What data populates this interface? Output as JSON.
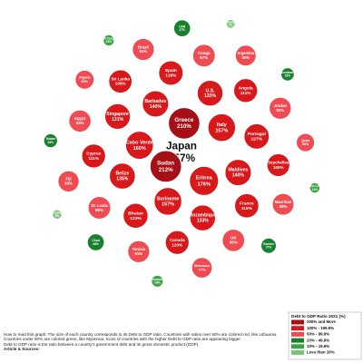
{
  "chart_data": {
    "type": "radial",
    "categories": [
      "Japan",
      "Sudan",
      "Greece",
      "Eritrea",
      "Cabo Verde",
      "Italy",
      "Suriname",
      "Barbados",
      "Maldives",
      "Belize",
      "U.S.",
      "Mozambique",
      "Singapore",
      "Portugal",
      "Bhutan",
      "Spain",
      "France",
      "Cyprus",
      "Angola",
      "Canada",
      "Sri Lanka",
      "Seychelles",
      "St. Lucia",
      "Congo",
      "UK",
      "Egypt",
      "Jordan",
      "Tunisia",
      "Brazil",
      "Mauritius",
      "Fiji",
      "Argentina",
      "Morocco",
      "Algeria",
      "Qatar",
      "Chad",
      "CAR",
      "Sweden",
      "Taiwan",
      "Luxembourg",
      "Micronesia",
      "DR Congo",
      "Timor-Leste",
      "Tuvalu",
      "Afghanistan"
    ],
    "values": [
      257,
      212,
      210,
      176,
      160,
      157,
      157,
      140,
      140,
      135,
      133,
      133,
      131,
      127,
      123,
      118,
      115,
      111,
      111,
      110,
      105,
      100,
      98,
      97,
      95,
      93,
      92,
      91,
      91,
      88,
      83,
      80,
      77,
      63,
      58,
      48,
      47,
      37,
      28,
      25,
      18,
      15,
      12,
      9,
      7
    ],
    "value_labels": [
      "257%",
      "212%",
      "210%",
      "176%",
      "160%",
      "157%",
      "157%",
      "140%",
      "140%",
      "135%",
      "133%",
      "133%",
      "131%",
      "127%",
      "123%",
      "118%",
      "115%",
      "111%",
      "111%",
      "110%",
      "105%",
      "100%",
      "98%",
      "97%",
      "95%",
      "93%",
      "92%",
      "91%",
      "91%",
      "88%",
      "83%",
      "80%",
      "77%",
      "63%",
      "58%",
      "48%",
      "47%",
      "37%",
      "28%",
      "25%",
      "18%",
      "15%",
      "12%",
      "9%",
      "7%"
    ],
    "colors": [
      "#a50f15",
      "#a50f15",
      "#a50f15",
      "#d7191c",
      "#d7191c",
      "#d7191c",
      "#d7191c",
      "#d7191c",
      "#d7191c",
      "#d7191c",
      "#d7191c",
      "#d7191c",
      "#d7191c",
      "#d7191c",
      "#d7191c",
      "#d7191c",
      "#d7191c",
      "#d7191c",
      "#d7191c",
      "#d7191c",
      "#d7191c",
      "#d7191c",
      "#ee4b52",
      "#ee4b52",
      "#ee4b52",
      "#ee4b52",
      "#ee4b52",
      "#ee4b52",
      "#ee4b52",
      "#ee4b52",
      "#ee4b52",
      "#ee4b52",
      "#ee4b52",
      "#ee4b52",
      "#ee4b52",
      "#1a7f2e",
      "#1a7f2e",
      "#1a7f2e",
      "#1a7f2e",
      "#1a7f2e",
      "#3aa446",
      "#3aa446",
      "#3aa446",
      "#7cc576",
      "#7cc576"
    ],
    "legend": {
      "title": "Debt to GDP Ratio 2021 (%)",
      "labels": [
        "200% and More",
        "100% - 199.9%",
        "50% - 99.9%",
        "20% - 49.9%",
        "10% - 19.9%",
        "Less than 10%"
      ],
      "colors": [
        "#a50f15",
        "#d7191c",
        "#ee4b52",
        "#1a7f2e",
        "#3aa446",
        "#7cc576"
      ]
    },
    "notes": [
      "How to read this graph: The size of each country corresponds to its Debt to GDP ratio. Countries with ratios over 50% are colored red, like Lithuania. Countries under 50% are colored green, like Myanmar. Icons of countries with the higher Debt to GDP ratio are appearing bigger.",
      "Debt to GDP ratio is the ratio between a country's government debt and its gross domestic product (GDP).",
      "Article & Sources:"
    ]
  }
}
